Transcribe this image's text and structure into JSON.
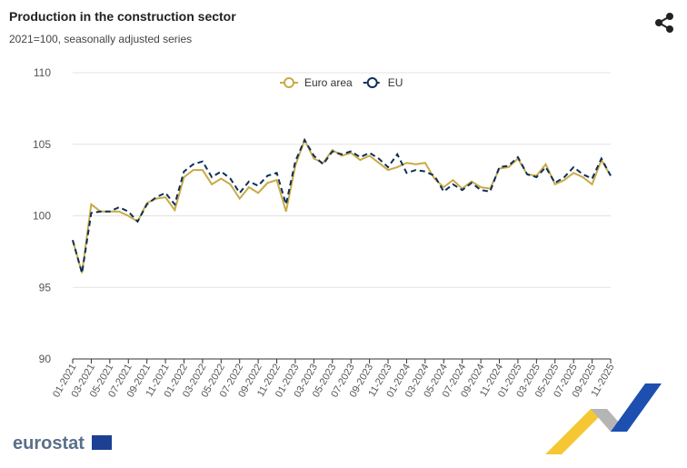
{
  "chart_data": {
    "type": "line",
    "title": "Production in the construction sector",
    "subtitle": "2021=100, seasonally adjusted series",
    "logo": "eurostat",
    "categories": [
      "01-2021",
      null,
      "03-2021",
      null,
      "05-2021",
      null,
      "07-2021",
      null,
      "09-2021",
      null,
      "11-2021",
      null,
      "01-2022",
      null,
      "03-2022",
      null,
      "05-2022",
      null,
      "07-2022",
      null,
      "09-2022",
      null,
      "11-2022",
      null,
      "01-2023",
      null,
      "03-2023",
      null,
      "05-2023",
      null,
      "07-2023",
      null,
      "09-2023",
      null,
      "11-2023",
      null,
      "01-2024",
      null,
      "03-2024",
      null,
      "05-2024",
      null,
      "07-2024",
      null,
      "09-2024",
      null,
      "11-2024",
      null,
      "01-2025",
      null,
      "03-2025",
      null,
      "05-2025",
      null,
      "07-2025",
      null,
      "09-2025",
      null,
      "11-2025"
    ],
    "series": [
      {
        "name": "Euro area",
        "color": "#c8ab45",
        "line_style": "solid",
        "values": [
          98.3,
          96.0,
          100.8,
          100.3,
          100.3,
          100.3,
          100.0,
          99.6,
          100.9,
          101.2,
          101.3,
          100.4,
          102.7,
          103.2,
          103.2,
          102.2,
          102.6,
          102.2,
          101.2,
          102.0,
          101.6,
          102.3,
          102.5,
          100.3,
          103.5,
          105.3,
          104.0,
          103.7,
          104.6,
          104.2,
          104.4,
          103.9,
          104.2,
          103.7,
          103.2,
          103.4,
          103.7,
          103.6,
          103.7,
          102.6,
          102.0,
          102.5,
          101.9,
          102.4,
          102.0,
          101.9,
          103.3,
          103.4,
          104.0,
          102.9,
          102.8,
          103.6,
          102.2,
          102.5,
          103.0,
          102.7,
          102.2,
          103.9,
          102.8
        ]
      },
      {
        "name": "EU",
        "color": "#0e2f5a",
        "line_style": "dashed",
        "values": [
          98.3,
          96.0,
          100.2,
          100.3,
          100.3,
          100.6,
          100.3,
          99.6,
          100.8,
          101.3,
          101.6,
          100.8,
          103.1,
          103.6,
          103.8,
          102.7,
          103.1,
          102.6,
          101.6,
          102.4,
          102.1,
          102.8,
          103.0,
          100.8,
          103.8,
          105.3,
          104.2,
          103.6,
          104.5,
          104.3,
          104.5,
          104.1,
          104.4,
          104.0,
          103.4,
          104.3,
          103.0,
          103.2,
          103.1,
          102.8,
          101.7,
          102.2,
          101.8,
          102.3,
          101.8,
          101.7,
          103.4,
          103.5,
          104.1,
          102.9,
          102.7,
          103.4,
          102.3,
          102.7,
          103.4,
          102.9,
          102.6,
          104.0,
          102.8
        ]
      }
    ],
    "ylim": [
      90,
      110
    ],
    "yticks": [
      90,
      95,
      100,
      105,
      110
    ],
    "grid": true,
    "legend": "top"
  }
}
